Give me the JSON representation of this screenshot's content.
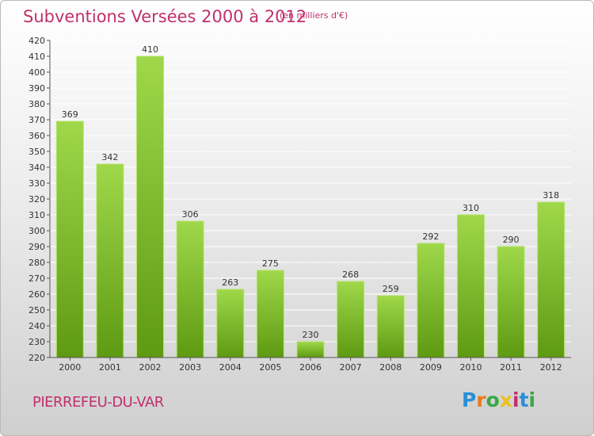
{
  "title": "Subventions Versées 2000 à 2012",
  "subtitle": "(en milliers d'€)",
  "commune": "PIERREFEU-DU-VAR",
  "logo": {
    "text": "Proxiti",
    "colors": [
      "#2a8fd6",
      "#e87a1c",
      "#3aa845",
      "#e8c21c",
      "#c0306a",
      "#2a8fd6",
      "#3aa845"
    ]
  },
  "colors": {
    "accent": "#c0306a",
    "bar_light": "#9fd84a",
    "bar_dark": "#5e9a12",
    "grid": "#ffffff"
  },
  "chart_data": {
    "type": "bar",
    "title": "Subventions Versées 2000 à 2012",
    "xlabel": "",
    "ylabel": "",
    "ylim": [
      220,
      420
    ],
    "yticks": [
      220,
      230,
      240,
      250,
      260,
      270,
      280,
      290,
      300,
      310,
      320,
      330,
      340,
      350,
      360,
      370,
      380,
      390,
      400,
      410,
      420
    ],
    "categories": [
      "2000",
      "2001",
      "2002",
      "2003",
      "2004",
      "2005",
      "2006",
      "2007",
      "2008",
      "2009",
      "2010",
      "2011",
      "2012"
    ],
    "values": [
      369,
      342,
      410,
      306,
      263,
      275,
      230,
      268,
      259,
      292,
      310,
      290,
      318
    ],
    "grid": true,
    "data_labels": true
  }
}
